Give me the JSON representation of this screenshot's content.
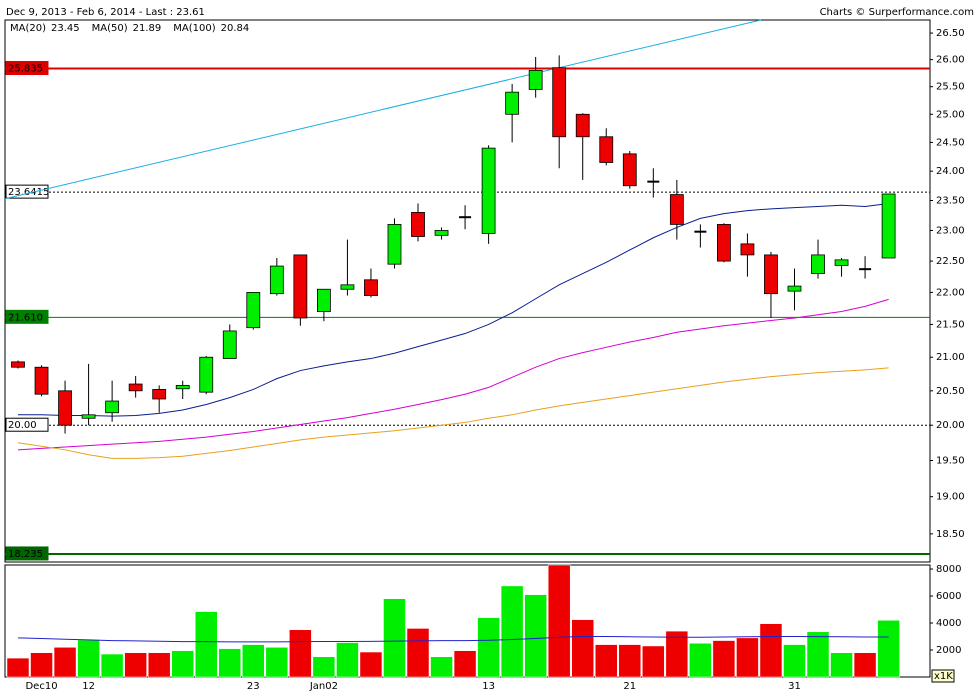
{
  "header": {
    "title": "Dec 9, 2013 - Feb 6, 2014 - Last : 23.61",
    "credit": "Charts © Surperformance.com"
  },
  "chart_data": [
    {
      "type": "candlestick",
      "categories": [
        null,
        "Dec10",
        null,
        "12",
        null,
        null,
        null,
        null,
        null,
        null,
        "23",
        null,
        null,
        "Jan02",
        null,
        null,
        null,
        null,
        null,
        null,
        "13",
        null,
        null,
        null,
        null,
        null,
        "21",
        null,
        null,
        null,
        null,
        null,
        null,
        "31",
        null,
        null,
        null,
        null
      ],
      "open": [
        20.93,
        20.85,
        20.5,
        20.1,
        20.18,
        20.6,
        20.52,
        20.53,
        20.48,
        20.98,
        21.45,
        21.98,
        22.6,
        21.7,
        22.05,
        22.2,
        22.45,
        23.3,
        22.92,
        23.22,
        22.95,
        25.0,
        25.45,
        25.85,
        25.0,
        24.6,
        24.3,
        23.82,
        23.6,
        22.98,
        23.1,
        22.78,
        22.6,
        22.02,
        22.3,
        22.43,
        22.37,
        22.55
      ],
      "high": [
        20.95,
        20.88,
        20.65,
        20.9,
        20.65,
        20.72,
        20.58,
        20.65,
        21.02,
        21.5,
        22.0,
        22.55,
        22.6,
        22.05,
        22.85,
        22.38,
        23.2,
        23.45,
        23.05,
        23.42,
        24.45,
        25.55,
        26.05,
        26.08,
        25.02,
        24.75,
        24.35,
        24.05,
        23.85,
        23.1,
        23.12,
        22.95,
        22.65,
        22.38,
        22.85,
        22.55,
        22.58,
        23.61
      ],
      "low": [
        20.83,
        20.42,
        19.88,
        20.0,
        20.05,
        20.4,
        20.18,
        20.38,
        20.45,
        20.98,
        21.42,
        21.95,
        21.48,
        21.55,
        21.95,
        21.92,
        22.38,
        22.82,
        22.85,
        23.02,
        22.78,
        24.5,
        25.3,
        24.05,
        23.85,
        24.1,
        23.7,
        23.55,
        22.85,
        22.72,
        22.48,
        22.25,
        21.6,
        21.72,
        22.22,
        22.25,
        22.22,
        22.55
      ],
      "close": [
        20.85,
        20.45,
        20.0,
        20.15,
        20.35,
        20.5,
        20.38,
        20.58,
        21.0,
        21.4,
        22.0,
        22.42,
        21.6,
        22.05,
        22.12,
        21.95,
        23.1,
        22.9,
        23.0,
        23.22,
        24.4,
        25.4,
        25.8,
        24.6,
        24.6,
        24.15,
        23.75,
        23.82,
        23.1,
        22.98,
        22.5,
        22.6,
        21.98,
        22.1,
        22.6,
        22.52,
        22.37,
        23.61
      ],
      "up_color": "#00ee00",
      "down_color": "#ee0000",
      "doji_color": "#000000",
      "series": [
        {
          "name": "MA(20)",
          "legend_value": 23.45,
          "color": "#0a1f8f",
          "values": [
            20.15,
            20.15,
            20.14,
            20.14,
            20.13,
            20.14,
            20.17,
            20.22,
            20.3,
            20.4,
            20.52,
            20.68,
            20.8,
            20.87,
            20.93,
            20.98,
            21.06,
            21.16,
            21.26,
            21.36,
            21.5,
            21.68,
            21.9,
            22.12,
            22.3,
            22.48,
            22.68,
            22.88,
            23.05,
            23.2,
            23.28,
            23.33,
            23.36,
            23.38,
            23.4,
            23.42,
            23.4,
            23.45
          ]
        },
        {
          "name": "MA(50)",
          "legend_value": 21.89,
          "color": "#d400d4",
          "values": [
            19.65,
            19.67,
            19.69,
            19.71,
            19.73,
            19.75,
            19.77,
            19.8,
            19.83,
            19.87,
            19.91,
            19.96,
            20.01,
            20.06,
            20.11,
            20.17,
            20.23,
            20.3,
            20.37,
            20.45,
            20.55,
            20.7,
            20.85,
            20.98,
            21.07,
            21.15,
            21.23,
            21.3,
            21.38,
            21.43,
            21.48,
            21.52,
            21.56,
            21.6,
            21.65,
            21.7,
            21.78,
            21.89
          ]
        },
        {
          "name": "MA(100)",
          "legend_value": 20.84,
          "color": "#e8a020",
          "values": [
            19.75,
            19.7,
            19.65,
            19.58,
            19.53,
            19.53,
            19.54,
            19.56,
            19.6,
            19.64,
            19.69,
            19.74,
            19.79,
            19.83,
            19.86,
            19.89,
            19.92,
            19.96,
            20.0,
            20.04,
            20.1,
            20.15,
            20.22,
            20.28,
            20.33,
            20.38,
            20.43,
            20.48,
            20.53,
            20.58,
            20.63,
            20.67,
            20.71,
            20.74,
            20.77,
            20.79,
            20.81,
            20.84
          ]
        }
      ],
      "levels": [
        {
          "value": 25.835,
          "color": "#dd0000",
          "style": "solid",
          "width": 2
        },
        {
          "value": 23.6415,
          "color": "#000000",
          "style": "dashed",
          "width": 1
        },
        {
          "value": {
            "value": 21.61,
            "label": "21.610"
          },
          "color": "#008000",
          "style": "solid",
          "width": 1
        },
        {
          "value": {
            "value": 20,
            "label": "20.00"
          },
          "color": "#000000",
          "style": "dashed",
          "width": 1
        },
        {
          "value": 18.235,
          "color": "#006600",
          "style": "solid",
          "width": 2
        }
      ],
      "trendline": {
        "x": [
          -0.55,
          31.57
        ],
        "y": [
          23.53,
          26.75
        ],
        "color": "#1ab0e0"
      },
      "log_scale": true,
      "ylim": [
        18.13,
        26.75
      ],
      "yticks": [
        {
          "value": 18.5,
          "label": "18.50"
        },
        {
          "value": 19,
          "label": "19.00"
        },
        {
          "value": 19.5,
          "label": "19.50"
        },
        {
          "value": 20,
          "label": "20.00"
        },
        {
          "value": 20.5,
          "label": "20.50"
        },
        {
          "value": 21,
          "label": "21.00"
        },
        {
          "value": 21.5,
          "label": "21.50"
        },
        {
          "value": 22,
          "label": "22.00"
        },
        {
          "value": 22.5,
          "label": "22.50"
        },
        {
          "value": 23,
          "label": "23.00"
        },
        {
          "value": 23.5,
          "label": "23.50"
        },
        {
          "value": 24,
          "label": "24.00"
        },
        {
          "value": 24.5,
          "label": "24.50"
        },
        {
          "value": 25,
          "label": "25.00"
        },
        {
          "value": 25.5,
          "label": "25.50"
        },
        {
          "value": 26,
          "label": "26.00"
        },
        {
          "value": 26.5,
          "label": "26.50"
        }
      ]
    },
    {
      "type": "bar",
      "values": [
        1400,
        1800,
        2200,
        2750,
        1700,
        1800,
        1800,
        1950,
        4850,
        2100,
        2400,
        2200,
        3500,
        1500,
        2550,
        1850,
        5800,
        3600,
        1500,
        1950,
        4400,
        6750,
        6100,
        8300,
        4250,
        2400,
        2400,
        2300,
        3400,
        2500,
        2700,
        2900,
        3950,
        2400,
        3350,
        1800,
        1800,
        4200
      ],
      "colors": [
        "#ee0000",
        "#ee0000",
        "#ee0000",
        "#00ee00",
        "#00ee00",
        "#ee0000",
        "#ee0000",
        "#00ee00",
        "#00ee00",
        "#00ee00",
        "#00ee00",
        "#00ee00",
        "#ee0000",
        "#00ee00",
        "#00ee00",
        "#ee0000",
        "#00ee00",
        "#ee0000",
        "#00ee00",
        "#ee0000",
        "#00ee00",
        "#00ee00",
        "#00ee00",
        "#ee0000",
        "#ee0000",
        "#ee0000",
        "#ee0000",
        "#ee0000",
        "#ee0000",
        "#00ee00",
        "#ee0000",
        "#ee0000",
        "#ee0000",
        "#00ee00",
        "#00ee00",
        "#00ee00",
        "#ee0000",
        "#00ee00"
      ],
      "ma": {
        "color": "#2222cc",
        "values": [
          2900,
          2850,
          2800,
          2750,
          2700,
          2680,
          2650,
          2620,
          2620,
          2600,
          2600,
          2600,
          2620,
          2630,
          2630,
          2640,
          2660,
          2680,
          2700,
          2700,
          2720,
          2780,
          2850,
          2950,
          3000,
          3000,
          2980,
          2960,
          2950,
          2950,
          2960,
          2980,
          3000,
          3000,
          2990,
          2980,
          2960,
          2960
        ]
      },
      "unit_label": "x1K",
      "ylim": [
        0,
        8300
      ],
      "yticks": [
        2000,
        4000,
        6000,
        8000
      ]
    }
  ]
}
